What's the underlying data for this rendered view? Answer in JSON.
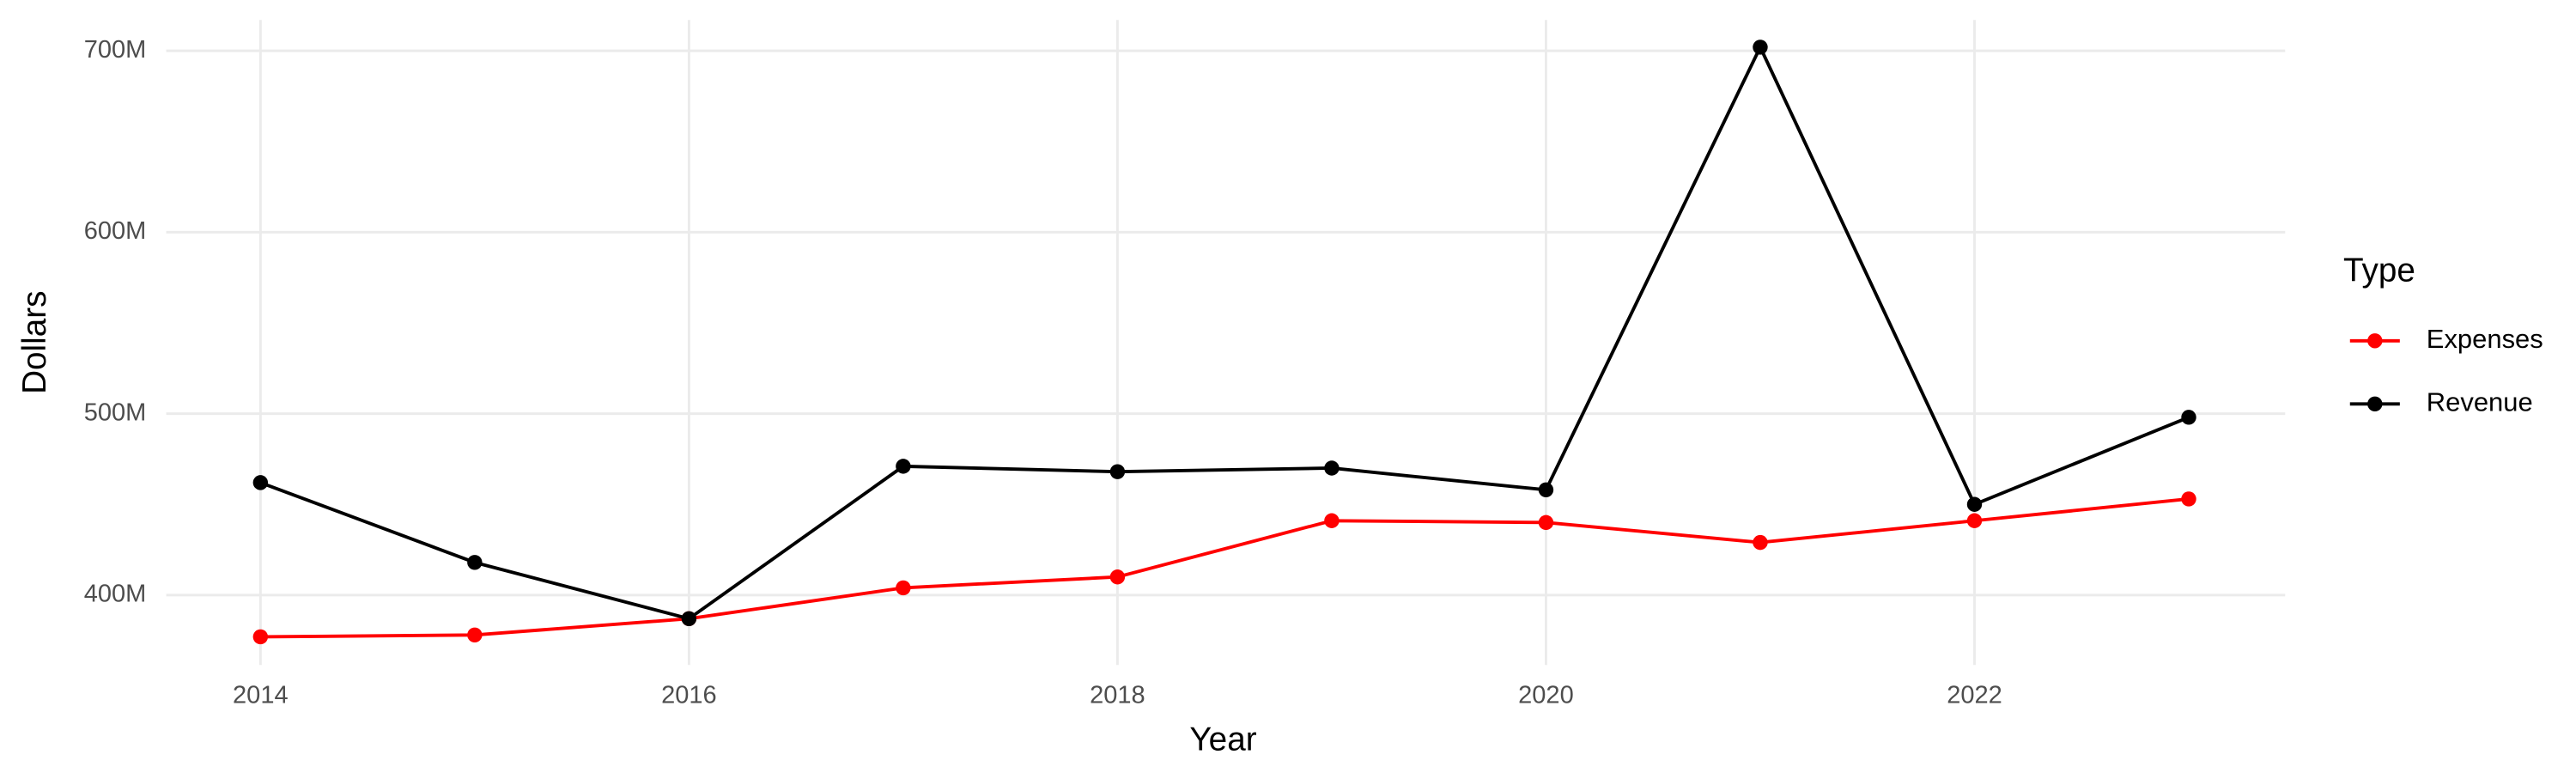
{
  "chart_data": {
    "type": "line",
    "x_label": "Year",
    "y_label": "Dollars",
    "x": [
      2014,
      2015,
      2016,
      2017,
      2018,
      2019,
      2020,
      2021,
      2022,
      2023
    ],
    "series": [
      {
        "name": "Expenses",
        "color": "#ff0000",
        "values": [
          377,
          378,
          387,
          404,
          410,
          441,
          440,
          429,
          441,
          453
        ]
      },
      {
        "name": "Revenue",
        "color": "#000000",
        "values": [
          462,
          418,
          387,
          471,
          468,
          470,
          458,
          702,
          450,
          498
        ]
      }
    ],
    "xlim": [
      2013.56,
      2023.45
    ],
    "ylim": [
      361.5,
      717
    ],
    "xticks": [
      2014,
      2016,
      2018,
      2020,
      2022
    ],
    "yticks": [
      {
        "value": 400,
        "label": "400M"
      },
      {
        "value": 500,
        "label": "500M"
      },
      {
        "value": 600,
        "label": "600M"
      },
      {
        "value": 700,
        "label": "700M"
      }
    ],
    "grid": true,
    "legend_title": "Type",
    "legend_position": "right"
  }
}
